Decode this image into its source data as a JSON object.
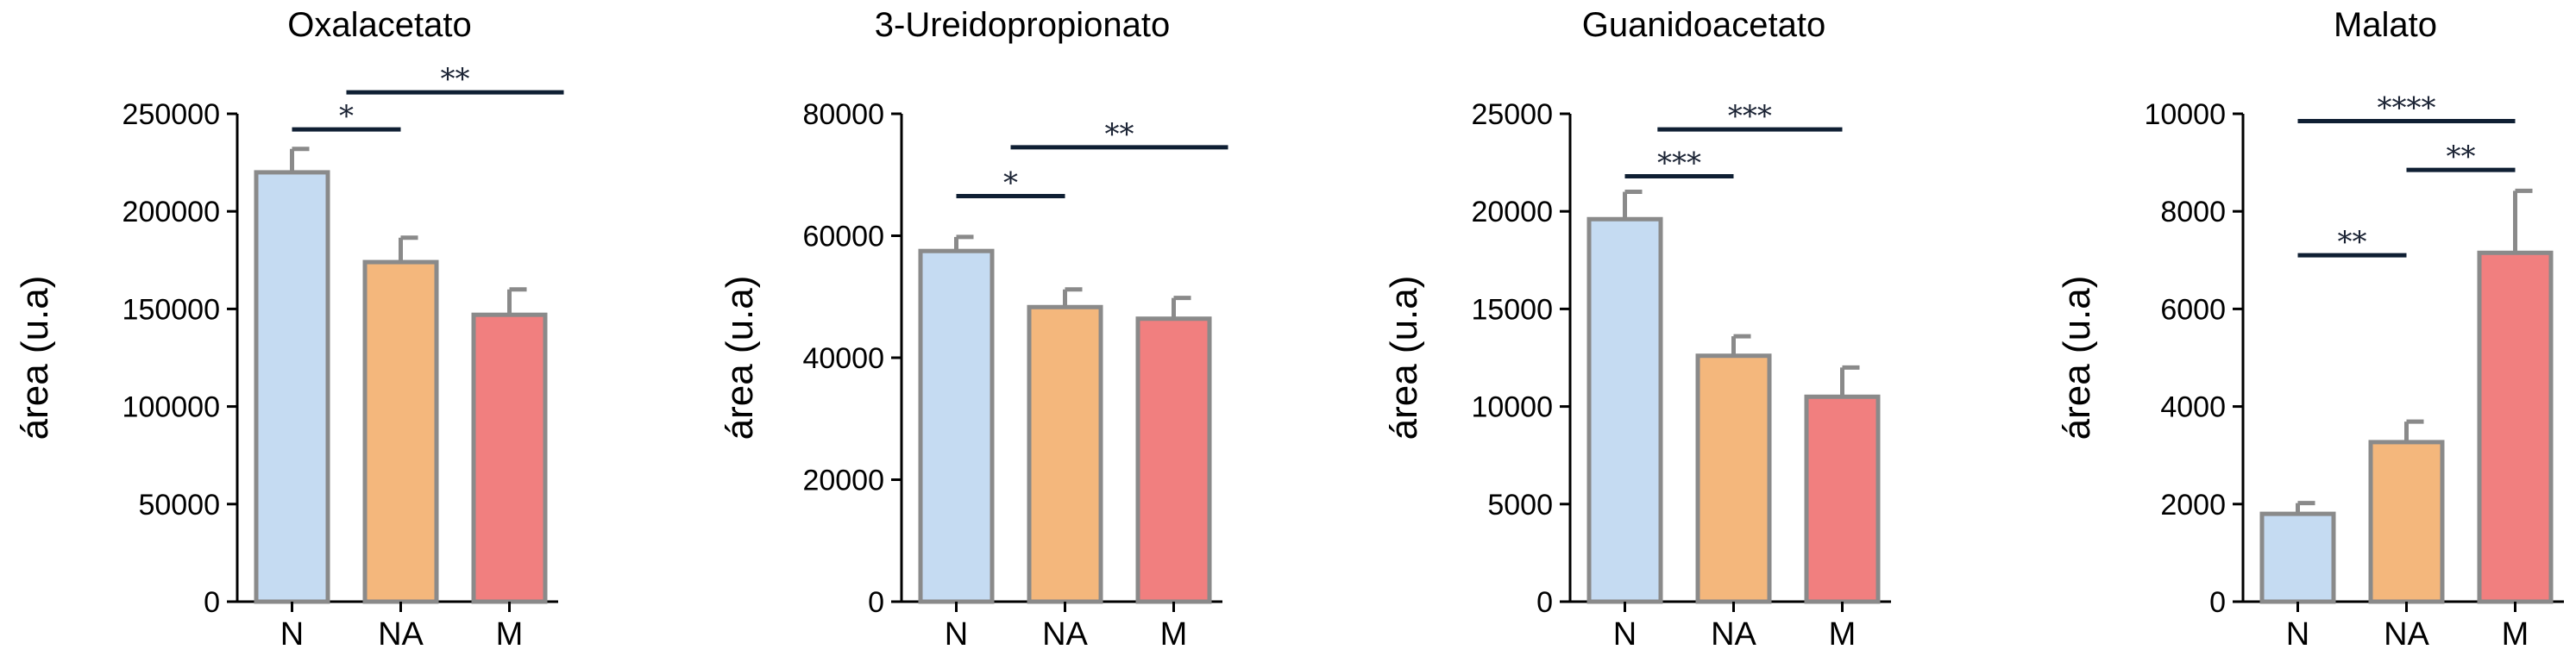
{
  "colors": {
    "N": "#c5dbf2",
    "NA": "#f4b77c",
    "M": "#f17f7f"
  },
  "chart_data": [
    {
      "type": "bar",
      "title": "Oxalacetato",
      "ylabel": "área (u.a)",
      "categories": [
        "N",
        "NA",
        "M"
      ],
      "values": [
        220000,
        174000,
        147000
      ],
      "errors": [
        12000,
        12500,
        13000
      ],
      "ylim": [
        0,
        250000
      ],
      "yticks": [
        0,
        50000,
        100000,
        150000,
        200000,
        250000
      ],
      "yticklabels": [
        "0",
        "50000",
        "100000",
        "150000",
        "200000",
        "250000"
      ],
      "significance": [
        {
          "from": 0,
          "to": 1,
          "label": "*",
          "y": 242000
        },
        {
          "from": 0.5,
          "to": 2.5,
          "label": "**",
          "y": 261000
        }
      ]
    },
    {
      "type": "bar",
      "title": "3-Ureidopropionato",
      "ylabel": "área (u.a)",
      "categories": [
        "N",
        "NA",
        "M"
      ],
      "values": [
        57500,
        48300,
        46400
      ],
      "errors": [
        2300,
        2900,
        3400
      ],
      "ylim": [
        0,
        80000
      ],
      "yticks": [
        0,
        20000,
        40000,
        60000,
        80000
      ],
      "yticklabels": [
        "0",
        "20000",
        "40000",
        "60000",
        "80000"
      ],
      "significance": [
        {
          "from": 0,
          "to": 1,
          "label": "*",
          "y": 66500
        },
        {
          "from": 0.5,
          "to": 2.5,
          "label": "**",
          "y": 74500
        }
      ]
    },
    {
      "type": "bar",
      "title": "Guanidoacetato",
      "ylabel": "área (u.a)",
      "categories": [
        "N",
        "NA",
        "M"
      ],
      "values": [
        19600,
        12600,
        10500
      ],
      "errors": [
        1400,
        1000,
        1500
      ],
      "ylim": [
        0,
        25000
      ],
      "yticks": [
        0,
        5000,
        10000,
        15000,
        20000,
        25000
      ],
      "yticklabels": [
        "0",
        "5000",
        "10000",
        "15000",
        "20000",
        "25000"
      ],
      "significance": [
        {
          "from": 0,
          "to": 1,
          "label": "***",
          "y": 21800
        },
        {
          "from": 0.3,
          "to": 2,
          "label": "***",
          "y": 24200
        }
      ]
    },
    {
      "type": "bar",
      "title": "Malato",
      "ylabel": "área (u.a)",
      "categories": [
        "N",
        "NA",
        "M"
      ],
      "values": [
        1800,
        3270,
        7150
      ],
      "errors": [
        220,
        420,
        1270
      ],
      "ylim": [
        0,
        10000
      ],
      "yticks": [
        0,
        2000,
        4000,
        6000,
        8000,
        10000
      ],
      "yticklabels": [
        "0",
        "2000",
        "4000",
        "6000",
        "8000",
        "10000"
      ],
      "significance": [
        {
          "from": 0,
          "to": 1,
          "label": "**",
          "y": 7100
        },
        {
          "from": 1,
          "to": 2,
          "label": "**",
          "y": 8850
        },
        {
          "from": 0,
          "to": 2,
          "label": "****",
          "y": 9850
        }
      ]
    }
  ]
}
